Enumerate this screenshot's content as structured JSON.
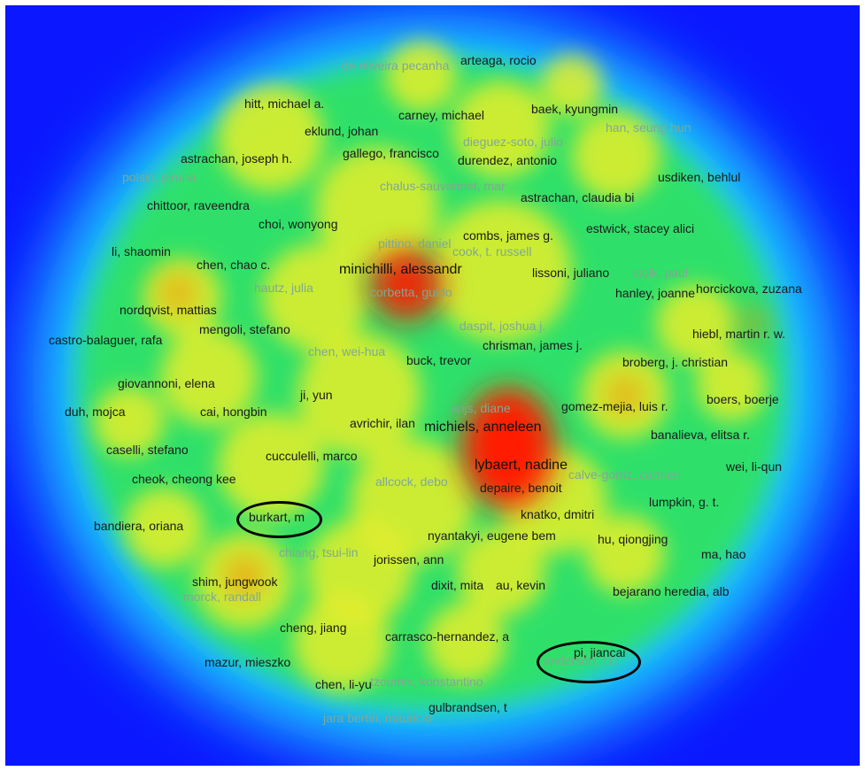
{
  "density_map": {
    "colors": {
      "background": "#0a17ff",
      "low": "#20d8ff",
      "mid": "#2fe06a",
      "high": "#e6ee2a",
      "peak": "#ff1a00"
    },
    "labels": [
      {
        "text": "de oliveira pecanha",
        "style": "faint"
      },
      {
        "text": "arteaga, rocio",
        "style": "dark"
      },
      {
        "text": "hitt, michael a.",
        "style": "dark"
      },
      {
        "text": "carney, michael",
        "style": "dark"
      },
      {
        "text": "baek, kyungmin",
        "style": "dark"
      },
      {
        "text": "eklund, johan",
        "style": "dark"
      },
      {
        "text": "han, seung hun",
        "style": "faint"
      },
      {
        "text": "dieguez-soto, julio",
        "style": "faint"
      },
      {
        "text": "astrachan, joseph h.",
        "style": "dark"
      },
      {
        "text": "gallego, francisco",
        "style": "dark"
      },
      {
        "text": "durendez, antonio",
        "style": "dark"
      },
      {
        "text": "polsiri, piruna",
        "style": "faint"
      },
      {
        "text": "usdiken, behlul",
        "style": "dark"
      },
      {
        "text": "chalus-sauvannet, mar",
        "style": "faint"
      },
      {
        "text": "astrachan, claudia bi",
        "style": "dark"
      },
      {
        "text": "chittoor, raveendra",
        "style": "dark"
      },
      {
        "text": "choi, wonyong",
        "style": "dark"
      },
      {
        "text": "combs, james g.",
        "style": "dark"
      },
      {
        "text": "estwick, stacey alici",
        "style": "dark"
      },
      {
        "text": "pittino, daniel",
        "style": "faint"
      },
      {
        "text": "cook, t. russell",
        "style": "faint"
      },
      {
        "text": "li, shaomin",
        "style": "dark"
      },
      {
        "text": "chen, chao c.",
        "style": "dark"
      },
      {
        "text": "minichilli, alessandr",
        "style": "big"
      },
      {
        "text": "lissoni, juliano",
        "style": "dark"
      },
      {
        "text": "stolk, paul",
        "style": "faint"
      },
      {
        "text": "hautz, julia",
        "style": "faint"
      },
      {
        "text": "corbetta, guido",
        "style": "faint"
      },
      {
        "text": "hanley, joanne",
        "style": "dark"
      },
      {
        "text": "horcickova, zuzana",
        "style": "dark"
      },
      {
        "text": "nordqvist, mattias",
        "style": "dark"
      },
      {
        "text": "daspit, joshua j.",
        "style": "faint"
      },
      {
        "text": "mengoli, stefano",
        "style": "dark"
      },
      {
        "text": "castro-balaguer, rafa",
        "style": "dark"
      },
      {
        "text": "chrisman, james j.",
        "style": "dark"
      },
      {
        "text": "hiebl, martin r. w.",
        "style": "dark"
      },
      {
        "text": "chen, wei-hua",
        "style": "faint"
      },
      {
        "text": "buck, trevor",
        "style": "dark"
      },
      {
        "text": "broberg, j. christian",
        "style": "dark"
      },
      {
        "text": "giovannoni, elena",
        "style": "dark"
      },
      {
        "text": "ji, yun",
        "style": "dark"
      },
      {
        "text": "boers, boerje",
        "style": "dark"
      },
      {
        "text": "arijs, diane",
        "style": "faint"
      },
      {
        "text": "gomez-mejia, luis r.",
        "style": "dark"
      },
      {
        "text": "duh, mojca",
        "style": "dark"
      },
      {
        "text": "cai, hongbin",
        "style": "dark"
      },
      {
        "text": "avrichir, ilan",
        "style": "dark"
      },
      {
        "text": "michiels, anneleen",
        "style": "big"
      },
      {
        "text": "banalieva, elitsa r.",
        "style": "dark"
      },
      {
        "text": "caselli, stefano",
        "style": "dark"
      },
      {
        "text": "cucculelli, marco",
        "style": "dark"
      },
      {
        "text": "lybaert, nadine",
        "style": "big"
      },
      {
        "text": "wei, li-qun",
        "style": "dark"
      },
      {
        "text": "cheok, cheong kee",
        "style": "dark"
      },
      {
        "text": "allcock, debo",
        "style": "faint"
      },
      {
        "text": "depaire, benoit",
        "style": "dark"
      },
      {
        "text": "calve-gorriz, carmen",
        "style": "faint"
      },
      {
        "text": "lumpkin, g. t.",
        "style": "dark"
      },
      {
        "text": "burkart, m",
        "style": "dark"
      },
      {
        "text": "knatko, dmitri",
        "style": "dark"
      },
      {
        "text": "bandiera, oriana",
        "style": "dark"
      },
      {
        "text": "nyantakyi, eugene bem",
        "style": "dark"
      },
      {
        "text": "hu, qiongjing",
        "style": "dark"
      },
      {
        "text": "chiang, tsui-lin",
        "style": "faint"
      },
      {
        "text": "jorissen, ann",
        "style": "dark"
      },
      {
        "text": "ma, hao",
        "style": "dark"
      },
      {
        "text": "shim, jungwook",
        "style": "dark"
      },
      {
        "text": "dixit, mita",
        "style": "dark"
      },
      {
        "text": "au, kevin",
        "style": "dark"
      },
      {
        "text": "morck, randall",
        "style": "faint"
      },
      {
        "text": "bejarano heredia, alb",
        "style": "dark"
      },
      {
        "text": "cheng, jiang",
        "style": "dark"
      },
      {
        "text": "carrasco-hernandez, a",
        "style": "dark"
      },
      {
        "text": "pi, jiancai",
        "style": "dark"
      },
      {
        "text": "anderson, r.c.",
        "style": "faint"
      },
      {
        "text": "mazur, mieszko",
        "style": "dark"
      },
      {
        "text": "chen, li-yu",
        "style": "dark"
      },
      {
        "text": "tzoumis, konstantino",
        "style": "faint"
      },
      {
        "text": "gulbrandsen, t",
        "style": "dark"
      },
      {
        "text": "jara bertin, mauricio",
        "style": "faint"
      }
    ]
  }
}
